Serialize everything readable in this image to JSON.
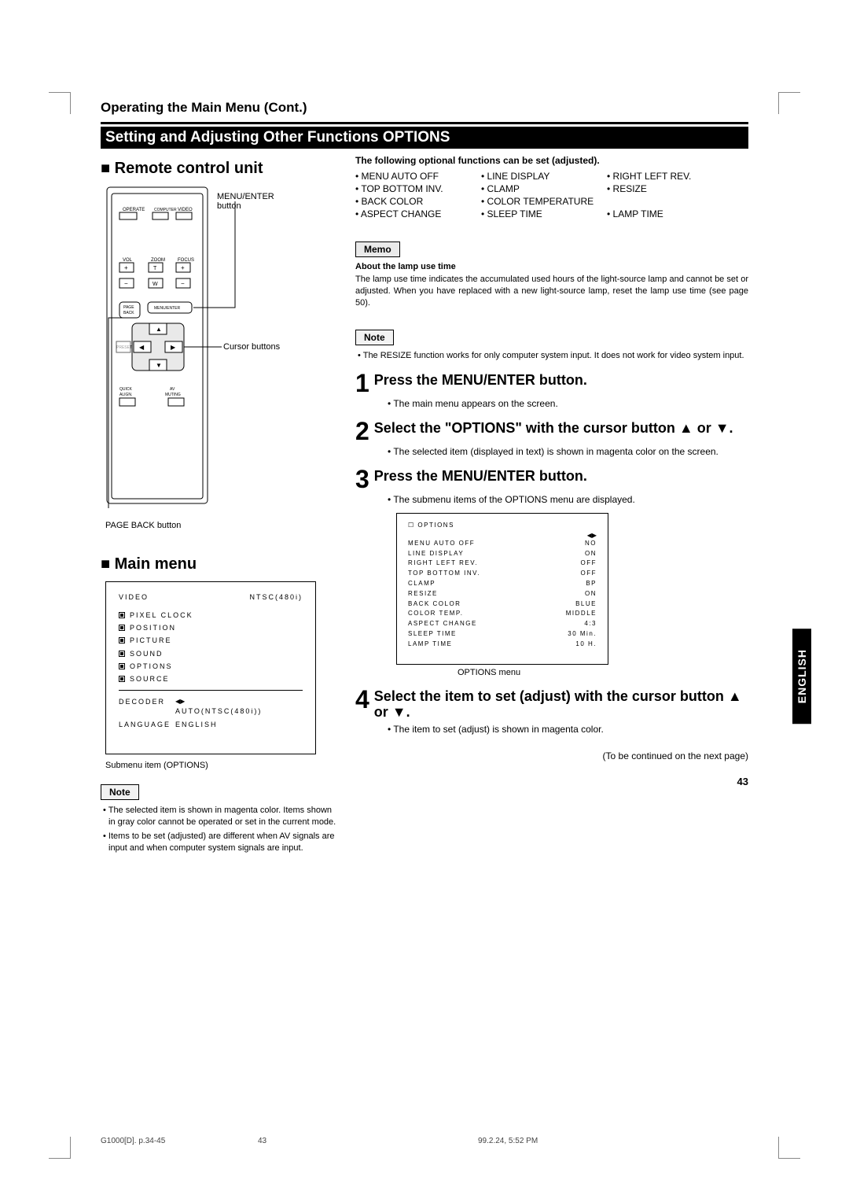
{
  "header": {
    "section": "Operating the Main Menu (Cont.)",
    "bar": "Setting and Adjusting Other Functions OPTIONS"
  },
  "left": {
    "remote_title": "Remote control unit",
    "labels": {
      "menu_enter": "MENU/ENTER",
      "button": "button",
      "cursor": "Cursor buttons",
      "page_back": "PAGE BACK button"
    },
    "remote": {
      "operate": "OPERATE",
      "computer": "COMPUTER",
      "video": "VIDEO",
      "vol": "VOL",
      "zoom": "ZOOM",
      "focus": "FOCUS",
      "plus": "+",
      "minus": "−",
      "t": "T",
      "w": "W",
      "page": "PAGE",
      "back": "BACK",
      "menuenter": "MENU/ENTER",
      "preset": "PRESET",
      "quick": "QUICK",
      "align": "ALIGN.",
      "av": "AV",
      "muting": "MUTING"
    },
    "mainmenu_title": "Main menu",
    "menu": {
      "video": "VIDEO",
      "ntsc": "NTSC(480i)",
      "items": [
        "PIXEL CLOCK",
        "POSITION",
        "PICTURE",
        "SOUND",
        "OPTIONS",
        "SOURCE"
      ],
      "decoder": "DECODER",
      "decoder_v": "AUTO(NTSC(480i))",
      "language": "LANGUAGE",
      "language_v": "ENGLISH",
      "caption": "Submenu item (OPTIONS)"
    },
    "note_label": "Note",
    "note1": "The selected item is shown in magenta color. Items shown in gray color cannot be operated or set in the current mode.",
    "note2": "Items to be set (adjusted) are different when AV signals are input and when computer system signals are input."
  },
  "right": {
    "intro": "The following optional functions can be set (adjusted).",
    "funcs": [
      "MENU AUTO OFF",
      "LINE DISPLAY",
      "RIGHT LEFT REV.",
      "TOP BOTTOM INV.",
      "CLAMP",
      "RESIZE",
      "BACK COLOR",
      "COLOR TEMPERATURE",
      "",
      "ASPECT CHANGE",
      "SLEEP TIME",
      "LAMP TIME"
    ],
    "memo_label": "Memo",
    "memo_head": "About the lamp use time",
    "memo_body": "The lamp use time indicates the accumulated used hours of the light-source lamp and cannot be set or adjusted. When you have replaced with a new light-source lamp, reset the lamp use time (see page 50).",
    "note_label": "Note",
    "note_body": "The RESIZE function works for only computer system input. It does not work for video system input.",
    "steps": {
      "s1": {
        "n": "1",
        "t": "Press the MENU/ENTER button.",
        "b": [
          "The main menu appears on the screen."
        ]
      },
      "s2": {
        "n": "2",
        "t": "Select the \"OPTIONS\" with the cursor button ▲ or ▼.",
        "b": [
          "The selected item (displayed in text) is shown in magenta color on the screen."
        ]
      },
      "s3": {
        "n": "3",
        "t": "Press the MENU/ENTER button.",
        "b": [
          "The submenu items of the OPTIONS menu are displayed."
        ]
      },
      "s4": {
        "n": "4",
        "t": "Select the item to set (adjust) with the cursor button ▲ or ▼.",
        "b": [
          "The item to set (adjust) is shown in magenta color."
        ]
      }
    },
    "optmenu": {
      "title": "OPTIONS",
      "rows": [
        [
          "MENU AUTO OFF",
          "NO"
        ],
        [
          "LINE DISPLAY",
          "ON"
        ],
        [
          "RIGHT LEFT REV.",
          "OFF"
        ],
        [
          "TOP BOTTOM INV.",
          "OFF"
        ],
        [
          "CLAMP",
          "BP"
        ],
        [
          "RESIZE",
          "ON"
        ],
        [
          "BACK COLOR",
          "BLUE"
        ],
        [
          "COLOR TEMP.",
          "MIDDLE"
        ],
        [
          "ASPECT CHANGE",
          "4:3"
        ],
        [
          "SLEEP TIME",
          "30   Min."
        ],
        [
          "LAMP TIME",
          "10   H."
        ]
      ],
      "caption": "OPTIONS menu"
    },
    "cont": "(To be continued on the next page)"
  },
  "sidetab": "ENGLISH",
  "pagenum": "43",
  "footer": {
    "f1": "G1000[D]. p.34-45",
    "f2": "43",
    "f3": "99.2.24, 5:52 PM"
  }
}
